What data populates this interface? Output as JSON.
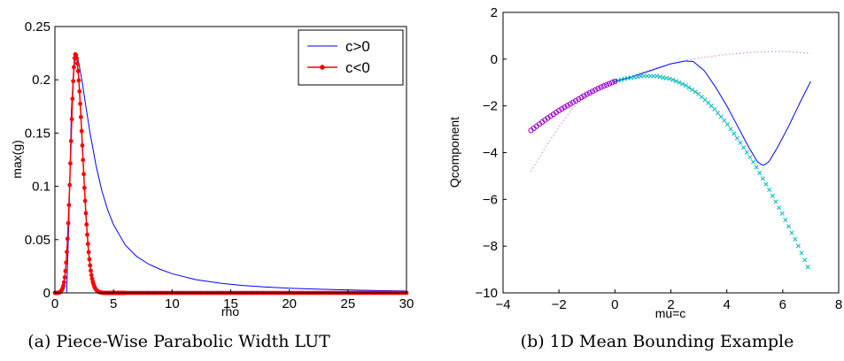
{
  "chart_data": [
    {
      "type": "line",
      "caption": "(a) Piece-Wise Parabolic Width LUT",
      "xlabel": "rho",
      "ylabel": "max(g)",
      "xlim": [
        0,
        30
      ],
      "ylim": [
        0,
        0.25
      ],
      "xticks": [
        0,
        5,
        10,
        15,
        20,
        25,
        30
      ],
      "yticks": [
        0,
        0.05,
        0.1,
        0.15,
        0.2,
        0.25
      ],
      "ytick_labels": [
        "0",
        "0.05",
        "0.1",
        "0.15",
        "0.2",
        "0.25"
      ],
      "legend_position": "top-right",
      "series": [
        {
          "name": "c>0",
          "color": "#0000ff",
          "style": "solid",
          "points": [
            [
              0,
              0
            ],
            [
              1.0,
              0
            ],
            [
              1.2,
              0.07
            ],
            [
              1.4,
              0.17
            ],
            [
              1.6,
              0.21
            ],
            [
              1.8,
              0.222
            ],
            [
              2.0,
              0.218
            ],
            [
              2.3,
              0.2
            ],
            [
              2.6,
              0.178
            ],
            [
              3.0,
              0.15
            ],
            [
              3.5,
              0.12
            ],
            [
              4.0,
              0.096
            ],
            [
              4.5,
              0.078
            ],
            [
              5,
              0.064
            ],
            [
              6,
              0.045
            ],
            [
              7,
              0.034
            ],
            [
              8,
              0.027
            ],
            [
              9,
              0.022
            ],
            [
              10,
              0.018
            ],
            [
              12,
              0.0125
            ],
            [
              14,
              0.0092
            ],
            [
              16,
              0.007
            ],
            [
              18,
              0.0055
            ],
            [
              20,
              0.0044
            ],
            [
              22,
              0.0036
            ],
            [
              24,
              0.003
            ],
            [
              26,
              0.0025
            ],
            [
              28,
              0.0021
            ],
            [
              30,
              0.0018
            ]
          ]
        },
        {
          "name": "c<0",
          "color": "#ff0000",
          "style": "line-with-dot-markers",
          "peak_x": 1.75,
          "peak_y": 0.224,
          "x_range": [
            0,
            30
          ]
        }
      ]
    },
    {
      "type": "line",
      "caption": "(b) 1D Mean Bounding Example",
      "xlabel": "mu=c",
      "ylabel": "Qcomponent",
      "xlim": [
        -4,
        8
      ],
      "ylim": [
        -10,
        2
      ],
      "xticks": [
        -4,
        -2,
        0,
        2,
        4,
        6,
        8
      ],
      "xtick_labels": [
        "−4",
        "−2",
        "0",
        "2",
        "4",
        "6",
        "8"
      ],
      "yticks": [
        -10,
        -8,
        -6,
        -4,
        -2,
        0,
        2
      ],
      "ytick_labels": [
        "−10",
        "−8",
        "−6",
        "−4",
        "−2",
        "0",
        "2"
      ],
      "series": [
        {
          "color": "#0000ff",
          "style": "solid",
          "points": [
            [
              0,
              -0.95
            ],
            [
              0.5,
              -0.8
            ],
            [
              1,
              -0.6
            ],
            [
              1.5,
              -0.4
            ],
            [
              2,
              -0.2
            ],
            [
              2.5,
              -0.08
            ],
            [
              2.8,
              -0.1
            ],
            [
              3.2,
              -0.5
            ],
            [
              3.6,
              -1.2
            ],
            [
              4,
              -2.0
            ],
            [
              4.4,
              -2.9
            ],
            [
              4.8,
              -3.8
            ],
            [
              5.1,
              -4.4
            ],
            [
              5.3,
              -4.55
            ],
            [
              5.5,
              -4.4
            ],
            [
              5.8,
              -3.8
            ],
            [
              6.2,
              -2.9
            ],
            [
              6.6,
              -1.9
            ],
            [
              7,
              -0.95
            ]
          ]
        },
        {
          "color": "#cc44cc",
          "style": "dotted",
          "points": [
            [
              -3,
              -4.8
            ],
            [
              -2.5,
              -3.8
            ],
            [
              -2,
              -2.9
            ],
            [
              -1.5,
              -2.1
            ],
            [
              -1,
              -1.5
            ],
            [
              -0.5,
              -1.15
            ],
            [
              0,
              -0.95
            ],
            [
              1,
              -0.55
            ],
            [
              2,
              -0.2
            ],
            [
              3,
              0.05
            ],
            [
              4,
              0.2
            ],
            [
              5,
              0.3
            ],
            [
              6,
              0.33
            ],
            [
              7,
              0.25
            ]
          ]
        },
        {
          "color": "#9900cc",
          "style": "circle-markers",
          "x_range": [
            -3,
            0
          ],
          "points": [
            [
              -3,
              -3.05
            ],
            [
              -2.5,
              -2.6
            ],
            [
              -2,
              -2.2
            ],
            [
              -1.5,
              -1.85
            ],
            [
              -1,
              -1.5
            ],
            [
              -0.5,
              -1.2
            ],
            [
              0,
              -0.95
            ]
          ]
        },
        {
          "color": "#00bbbb",
          "style": "x-markers",
          "x_range": [
            0,
            7
          ],
          "points": [
            [
              0,
              -0.95
            ],
            [
              0.5,
              -0.8
            ],
            [
              1,
              -0.72
            ],
            [
              1.5,
              -0.73
            ],
            [
              2,
              -0.85
            ],
            [
              2.5,
              -1.1
            ],
            [
              3,
              -1.5
            ],
            [
              3.5,
              -2.05
            ],
            [
              4,
              -2.75
            ],
            [
              4.5,
              -3.6
            ],
            [
              5,
              -4.5
            ],
            [
              5.5,
              -5.55
            ],
            [
              6,
              -6.65
            ],
            [
              6.5,
              -7.85
            ],
            [
              7,
              -9.15
            ]
          ]
        }
      ]
    }
  ]
}
